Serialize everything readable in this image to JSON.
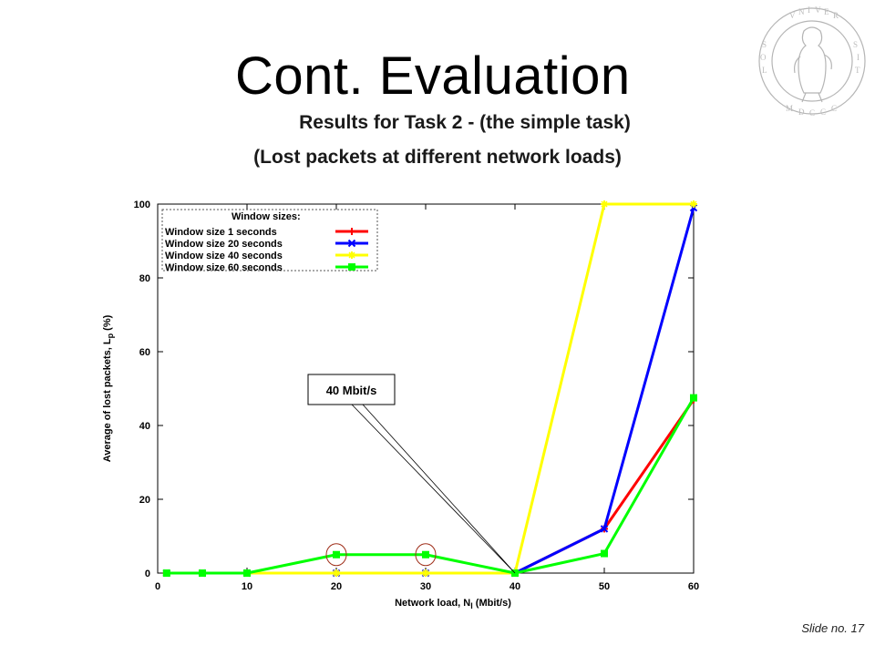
{
  "slide": {
    "title": "Cont. Evaluation",
    "subtitle_1": "Results for Task 2 -  (the simple task)",
    "subtitle_2": "(Lost packets at different network loads)",
    "slide_number": "Slide no. 17"
  },
  "chart_data": {
    "type": "line",
    "xlabel": "Network load, N",
    "xlabel_sub": "l",
    "xlabel_unit": " (Mbit/s)",
    "ylabel": "Average of lost packets, L",
    "ylabel_sub": "p",
    "ylabel_unit": " (%)",
    "xlim": [
      0,
      60
    ],
    "ylim": [
      0,
      100
    ],
    "xticks": [
      0,
      10,
      20,
      30,
      40,
      50,
      60
    ],
    "yticks": [
      0,
      20,
      40,
      60,
      80,
      100
    ],
    "legend": {
      "title": "Window sizes:",
      "position": "top-left"
    },
    "series": [
      {
        "name": "Window size   1 seconds",
        "color": "#ff0000",
        "marker": "plus",
        "x": [
          1,
          5,
          10,
          20,
          30,
          40,
          50,
          60
        ],
        "y": [
          0,
          0,
          0,
          0,
          0,
          0,
          12,
          47
        ]
      },
      {
        "name": "Window size 20 seconds",
        "color": "#0000ff",
        "marker": "x",
        "x": [
          1,
          5,
          10,
          20,
          30,
          40,
          50,
          60
        ],
        "y": [
          0,
          0,
          0,
          0,
          0,
          0,
          12,
          99
        ]
      },
      {
        "name": "Window size 40 seconds",
        "color": "#ffff00",
        "marker": "star",
        "x": [
          1,
          5,
          10,
          20,
          30,
          40,
          50,
          60
        ],
        "y": [
          0,
          0,
          0,
          0,
          0,
          0,
          100,
          100
        ]
      },
      {
        "name": "Window size 60 seconds",
        "color": "#00ff00",
        "marker": "square",
        "x": [
          1,
          5,
          10,
          20,
          30,
          40,
          50,
          60
        ],
        "y": [
          0,
          0,
          0,
          5,
          5,
          0,
          5.3,
          47.5
        ]
      }
    ],
    "annotations": [
      {
        "text": "40 Mbit/s",
        "point": [
          40,
          0
        ]
      }
    ],
    "highlight_circles": [
      [
        20,
        5
      ],
      [
        30,
        5
      ]
    ]
  }
}
